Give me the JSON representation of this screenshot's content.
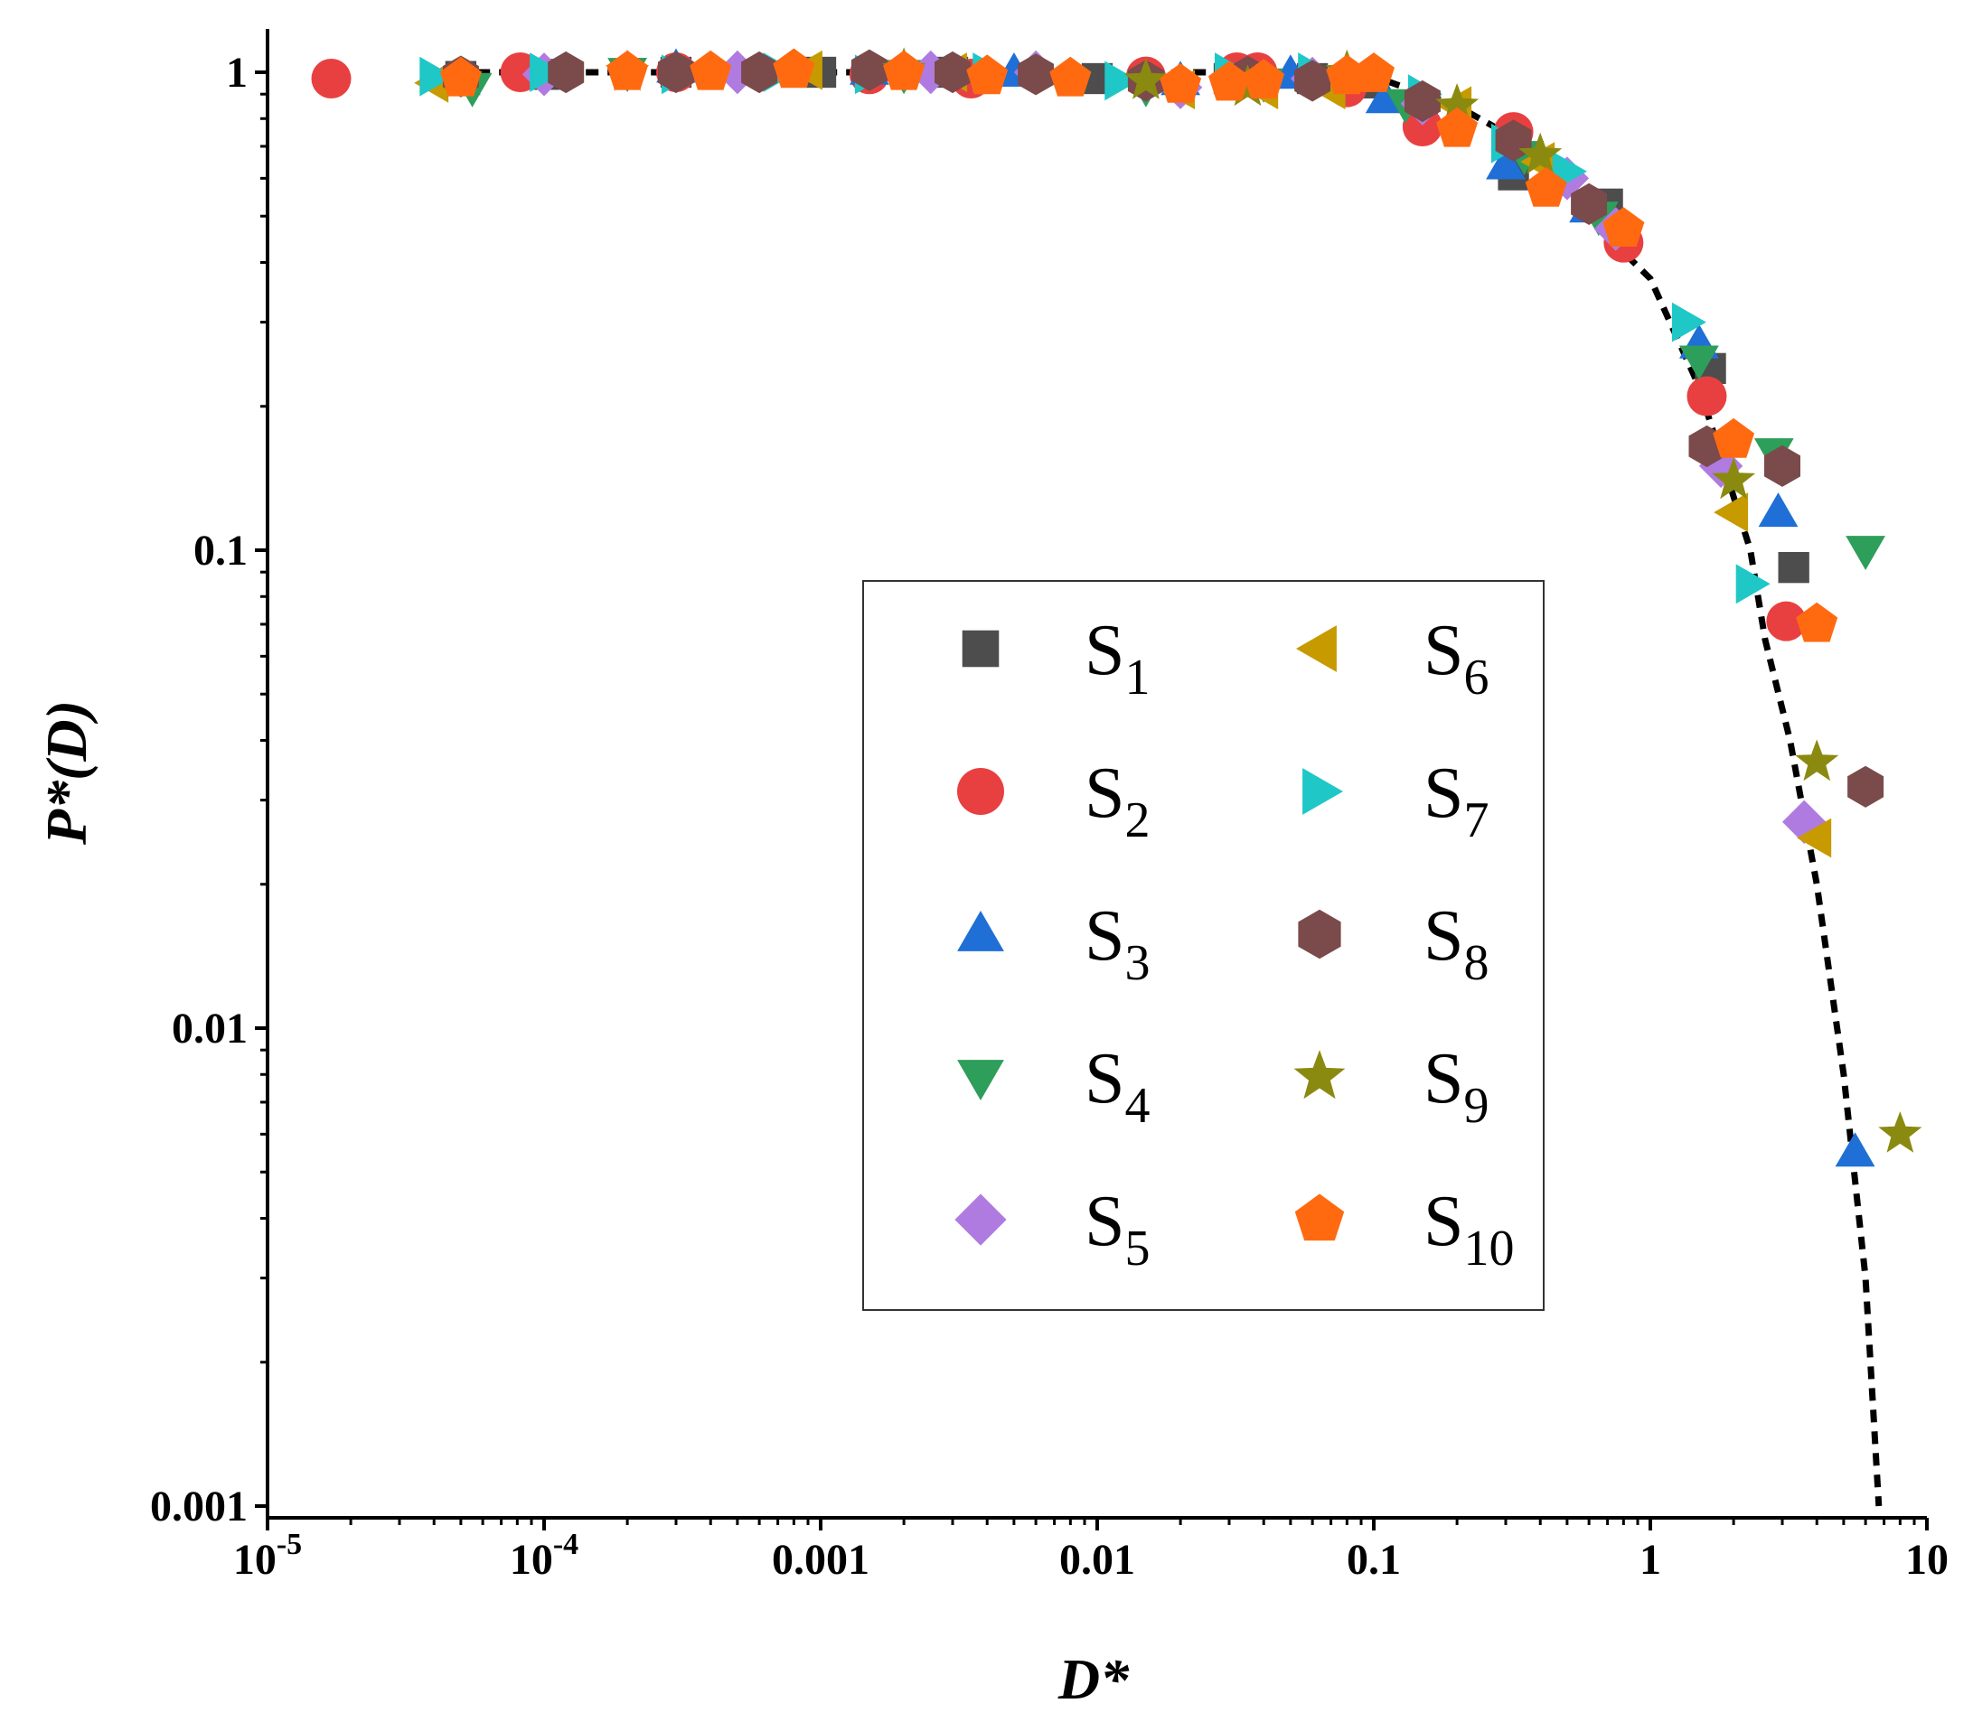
{
  "chart_data": {
    "type": "scatter",
    "xscale": "log",
    "yscale": "log",
    "xlim": [
      1e-05,
      10
    ],
    "ylim": [
      0.001,
      1.3
    ],
    "xlabel": "D*",
    "ylabel": "P*(D)",
    "xticks": [
      {
        "value": 1e-05,
        "base": "10",
        "exp": "-5"
      },
      {
        "value": 0.0001,
        "base": "10",
        "exp": "-4"
      },
      {
        "value": 0.001,
        "label": "0.001"
      },
      {
        "value": 0.01,
        "label": "0.01"
      },
      {
        "value": 0.1,
        "label": "0.1"
      },
      {
        "value": 1,
        "label": "1"
      },
      {
        "value": 10,
        "label": "10"
      }
    ],
    "yticks": [
      {
        "value": 1,
        "label": "1"
      },
      {
        "value": 0.1,
        "label": "0.1"
      },
      {
        "value": 0.01,
        "label": "0.01"
      },
      {
        "value": 0.001,
        "label": "0.001"
      }
    ],
    "legend_position": "center",
    "fit_curve": {
      "style": "dashed",
      "color": "#000000",
      "points": [
        [
          4e-05,
          1.0
        ],
        [
          8e-05,
          1.0
        ],
        [
          0.001,
          1.0
        ],
        [
          0.01,
          1.0
        ],
        [
          0.06,
          1.0
        ],
        [
          0.1,
          0.98
        ],
        [
          0.2,
          0.85
        ],
        [
          0.4,
          0.68
        ],
        [
          0.8,
          0.42
        ],
        [
          1.0,
          0.37
        ],
        [
          1.5,
          0.22
        ],
        [
          2.3,
          0.1
        ],
        [
          2.6,
          0.065
        ],
        [
          3.2,
          0.04
        ],
        [
          4.0,
          0.02
        ],
        [
          5.0,
          0.008
        ],
        [
          6.0,
          0.003
        ],
        [
          6.7,
          0.001
        ]
      ]
    },
    "series": [
      {
        "name": "S",
        "sub": "1",
        "marker": "square",
        "color": "#4d4d4d",
        "x": [
          5e-05,
          0.0001,
          0.0003,
          0.001,
          0.003,
          0.01,
          0.03,
          0.06,
          0.1,
          0.15,
          0.32,
          0.7,
          1.65,
          3.3
        ],
        "y": [
          0.98,
          0.99,
          1.0,
          1.0,
          1.0,
          0.97,
          0.97,
          0.97,
          0.95,
          0.85,
          0.61,
          0.53,
          0.24,
          0.092
        ]
      },
      {
        "name": "S",
        "sub": "2",
        "marker": "circle",
        "color": "#e84040",
        "x": [
          1.7e-05,
          8.2e-05,
          0.0003,
          0.0015,
          0.0035,
          0.015,
          0.032,
          0.038,
          0.08,
          0.15,
          0.32,
          0.8,
          1.6,
          3.1
        ],
        "y": [
          0.97,
          1.0,
          1.0,
          0.99,
          0.97,
          0.98,
          1.0,
          1.0,
          0.93,
          0.77,
          0.75,
          0.44,
          0.21,
          0.071
        ]
      },
      {
        "name": "S",
        "sub": "3",
        "marker": "triangle-up",
        "color": "#1f6fd6",
        "x": [
          5e-05,
          0.0003,
          0.0015,
          0.005,
          0.02,
          0.05,
          0.11,
          0.3,
          0.6,
          1.5,
          2.9,
          5.5
        ],
        "y": [
          0.96,
          1.02,
          1.01,
          1.0,
          0.96,
          0.99,
          0.88,
          0.64,
          0.52,
          0.27,
          0.12,
          0.0055
        ]
      },
      {
        "name": "S",
        "sub": "4",
        "marker": "triangle-down",
        "color": "#2e9e5b",
        "x": [
          5.5e-05,
          0.0002,
          0.002,
          0.015,
          0.04,
          0.13,
          0.35,
          0.65,
          1.5,
          2.8,
          6.0
        ],
        "y": [
          0.93,
          1.0,
          0.99,
          0.93,
          0.95,
          0.86,
          0.67,
          0.5,
          0.25,
          0.16,
          0.1
        ]
      },
      {
        "name": "S",
        "sub": "5",
        "marker": "diamond",
        "color": "#b07be0",
        "x": [
          0.0001,
          0.0005,
          0.0025,
          0.006,
          0.02,
          0.06,
          0.15,
          0.5,
          0.75,
          1.8,
          3.6
        ],
        "y": [
          0.99,
          1.0,
          1.0,
          1.0,
          0.93,
          0.97,
          0.86,
          0.6,
          0.47,
          0.15,
          0.027
        ]
      },
      {
        "name": "S",
        "sub": "6",
        "marker": "triangle-left",
        "color": "#c79a00",
        "x": [
          4e-05,
          0.0009,
          0.003,
          0.02,
          0.04,
          0.07,
          0.2,
          0.4,
          2.0,
          4.0
        ],
        "y": [
          0.95,
          1.01,
          1.0,
          0.92,
          0.92,
          0.92,
          0.85,
          0.65,
          0.12,
          0.025
        ]
      },
      {
        "name": "S",
        "sub": "7",
        "marker": "triangle-right",
        "color": "#1fc7c7",
        "x": [
          4e-05,
          0.0001,
          0.0003,
          0.0007,
          0.0015,
          0.004,
          0.012,
          0.03,
          0.06,
          0.15,
          0.3,
          0.5,
          1.35,
          2.3
        ],
        "y": [
          0.98,
          1.0,
          0.99,
          1.0,
          0.99,
          1.0,
          0.96,
          1.0,
          1.0,
          0.9,
          0.71,
          0.62,
          0.3,
          0.085
        ]
      },
      {
        "name": "S",
        "sub": "8",
        "marker": "hexagon",
        "color": "#7b4a4a",
        "x": [
          5e-05,
          0.00012,
          0.0003,
          0.0006,
          0.0015,
          0.003,
          0.006,
          0.015,
          0.035,
          0.06,
          0.15,
          0.32,
          0.6,
          1.6,
          3.0,
          6.0
        ],
        "y": [
          0.98,
          1.0,
          1.0,
          1.0,
          1.01,
          1.0,
          0.99,
          0.96,
          0.98,
          0.96,
          0.87,
          0.72,
          0.53,
          0.165,
          0.15,
          0.032
        ]
      },
      {
        "name": "S",
        "sub": "9",
        "marker": "star",
        "color": "#8a8a10",
        "x": [
          5e-05,
          0.0002,
          0.002,
          0.015,
          0.035,
          0.08,
          0.2,
          0.4,
          2.0,
          4.0,
          8.0
        ],
        "y": [
          0.97,
          1.0,
          1.01,
          0.96,
          0.93,
          1.0,
          0.85,
          0.67,
          0.14,
          0.036,
          0.006
        ]
      },
      {
        "name": "S",
        "sub": "10",
        "marker": "pentagon",
        "color": "#ff6a10",
        "x": [
          5e-05,
          0.0002,
          0.0004,
          0.0008,
          0.002,
          0.004,
          0.008,
          0.02,
          0.03,
          0.04,
          0.08,
          0.1,
          0.2,
          0.42,
          0.8,
          2.0,
          4.0
        ],
        "y": [
          0.97,
          1.0,
          1.0,
          1.01,
          1.0,
          0.98,
          0.97,
          0.94,
          0.95,
          0.96,
          0.98,
          0.99,
          0.76,
          0.57,
          0.47,
          0.17,
          0.07
        ]
      }
    ]
  }
}
